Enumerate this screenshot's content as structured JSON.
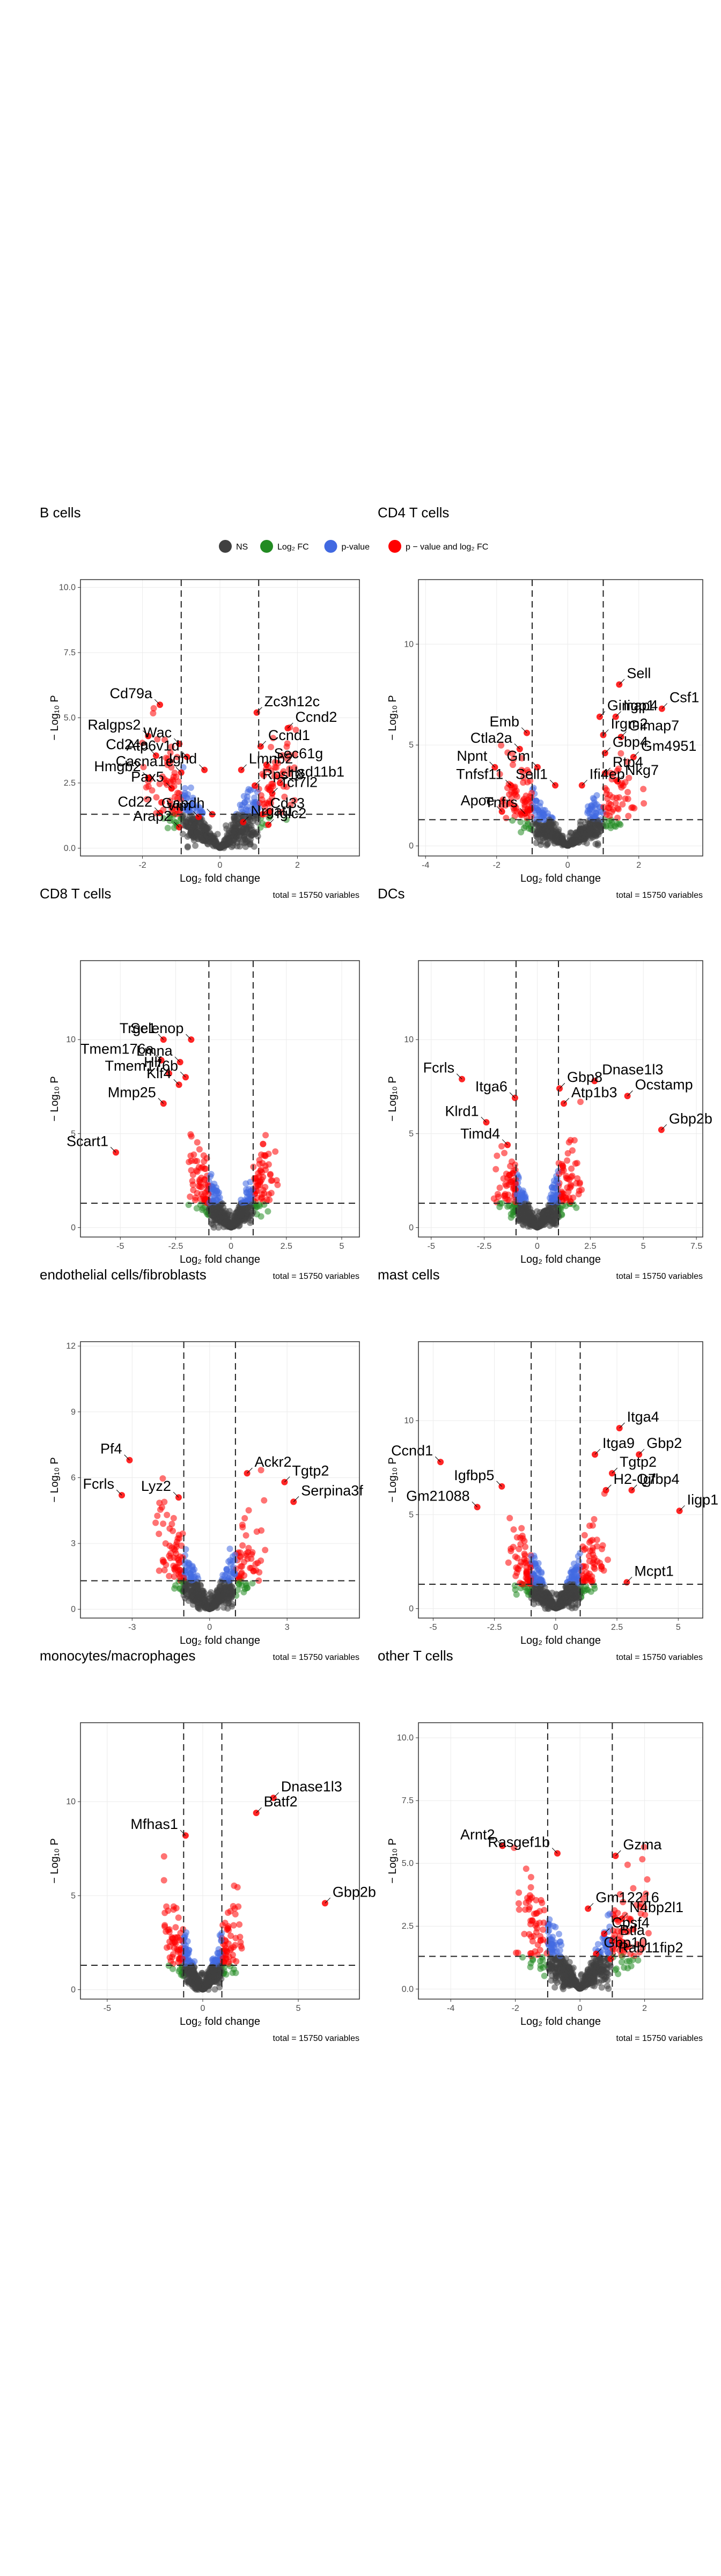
{
  "legend": {
    "items": [
      {
        "label": "NS",
        "color": "#404040"
      },
      {
        "label": "Log₂ FC",
        "color": "#228B22"
      },
      {
        "label": "p-value",
        "color": "#4169E1"
      },
      {
        "label": "p − value and log₂ FC",
        "color": "#FF0000"
      }
    ]
  },
  "shared": {
    "xlabel": "Log₂ fold change",
    "ylabel": "− Log₁₀ P",
    "caption": "total = 15750 variables",
    "colors": {
      "ns": "#404040",
      "fc": "#228B22",
      "p": "#4169E1",
      "both": "#FF0000"
    }
  },
  "chart_data": [
    {
      "type": "scatter",
      "title": "B cells",
      "xlim": [
        -3.6,
        3.6
      ],
      "ylim": [
        -0.3,
        10.3
      ],
      "xticks": [
        -2,
        0,
        2
      ],
      "yticks": [
        0.0,
        2.5,
        5.0,
        7.5,
        10.0
      ],
      "fc_cutoff": 1,
      "p_line": 1.3,
      "labels": [
        {
          "gene": "Cd79a",
          "x": -1.55,
          "y": 5.5
        },
        {
          "gene": "Ralgps2",
          "x": -1.85,
          "y": 4.3
        },
        {
          "gene": "Wac",
          "x": -1.05,
          "y": 4.0
        },
        {
          "gene": "Cd24a",
          "x": -1.65,
          "y": 3.55
        },
        {
          "gene": "Hmgb2",
          "x": -1.85,
          "y": 2.7
        },
        {
          "gene": "Pax5",
          "x": -1.25,
          "y": 2.3
        },
        {
          "gene": "Cd22",
          "x": -1.55,
          "y": 1.35
        },
        {
          "gene": "Arap2",
          "x": -1.05,
          "y": 0.8
        },
        {
          "gene": "Cacna1e",
          "x": -1.0,
          "y": 2.9
        },
        {
          "gene": "Atp6v1d",
          "x": -0.85,
          "y": 3.5
        },
        {
          "gene": "Ighd",
          "x": -0.4,
          "y": 3.0
        },
        {
          "gene": "Vim",
          "x": -0.55,
          "y": 1.2
        },
        {
          "gene": "Gapdh",
          "x": -0.2,
          "y": 1.3
        },
        {
          "gene": "Zc3h12c",
          "x": 0.95,
          "y": 5.2
        },
        {
          "gene": "Ccnd1",
          "x": 1.05,
          "y": 3.9
        },
        {
          "gene": "Ccnd2",
          "x": 1.75,
          "y": 4.6
        },
        {
          "gene": "Sec61g",
          "x": 1.2,
          "y": 3.2
        },
        {
          "gene": "Lmnb2",
          "x": 0.55,
          "y": 3.0
        },
        {
          "gene": "Hsd11b1",
          "x": 1.55,
          "y": 2.5
        },
        {
          "gene": "Rps18",
          "x": 0.9,
          "y": 2.4
        },
        {
          "gene": "Tcf7l2",
          "x": 1.35,
          "y": 2.1
        },
        {
          "gene": "Cd33",
          "x": 1.1,
          "y": 1.3
        },
        {
          "gene": "Nrgat1",
          "x": 0.6,
          "y": 1.0
        },
        {
          "gene": "Iglc2",
          "x": 1.25,
          "y": 0.9
        }
      ]
    },
    {
      "type": "scatter",
      "title": "CD4 T cells",
      "xlim": [
        -4.2,
        3.8
      ],
      "ylim": [
        -0.5,
        13.2
      ],
      "xticks": [
        -4,
        -2,
        0,
        2
      ],
      "yticks": [
        0,
        5,
        10
      ],
      "fc_cutoff": 1,
      "p_line": 1.3,
      "labels": [
        {
          "gene": "Sell",
          "x": 1.45,
          "y": 8.0
        },
        {
          "gene": "Gimap4",
          "x": 0.9,
          "y": 6.4
        },
        {
          "gene": "Iigp1",
          "x": 1.35,
          "y": 6.4
        },
        {
          "gene": "Csf1",
          "x": 2.65,
          "y": 6.8
        },
        {
          "gene": "Emb",
          "x": -1.15,
          "y": 5.6
        },
        {
          "gene": "Irgm2",
          "x": 1.0,
          "y": 5.5
        },
        {
          "gene": "Gimap7",
          "x": 1.5,
          "y": 5.4
        },
        {
          "gene": "Ctla2a",
          "x": -1.35,
          "y": 4.8
        },
        {
          "gene": "Gbp4",
          "x": 1.05,
          "y": 4.6
        },
        {
          "gene": "Gm4951",
          "x": 1.85,
          "y": 4.4
        },
        {
          "gene": "Npnt",
          "x": -2.05,
          "y": 3.9
        },
        {
          "gene": "Gm",
          "x": -0.85,
          "y": 3.9
        },
        {
          "gene": "Rtp4",
          "x": 1.05,
          "y": 3.6
        },
        {
          "gene": "Nkg7",
          "x": 1.4,
          "y": 3.2
        },
        {
          "gene": "Tnfsf11",
          "x": -1.6,
          "y": 3.0
        },
        {
          "gene": "Sell1",
          "x": -0.35,
          "y": 3.0
        },
        {
          "gene": "Ifi4ep",
          "x": 0.4,
          "y": 3.0
        },
        {
          "gene": "Apoe",
          "x": -1.85,
          "y": 1.7
        },
        {
          "gene": "Tnfrs",
          "x": -1.2,
          "y": 1.6
        }
      ]
    },
    {
      "type": "scatter",
      "title": "CD8 T cells",
      "xlim": [
        -6.8,
        5.8
      ],
      "ylim": [
        -0.5,
        14.2
      ],
      "xticks": [
        -5.0,
        -2.5,
        0.0,
        2.5,
        5.0
      ],
      "yticks": [
        0,
        5,
        10
      ],
      "fc_cutoff": 1,
      "p_line": 1.3,
      "labels": [
        {
          "gene": "Trgc1",
          "x": -3.05,
          "y": 10.0
        },
        {
          "gene": "Selenop",
          "x": -1.8,
          "y": 10.0
        },
        {
          "gene": "Tmem176a",
          "x": -3.15,
          "y": 8.9
        },
        {
          "gene": "Lmna",
          "x": -2.3,
          "y": 8.8
        },
        {
          "gene": "Hlf",
          "x": -2.8,
          "y": 8.2
        },
        {
          "gene": "Tmem176b",
          "x": -2.05,
          "y": 8.0
        },
        {
          "gene": "Klf4",
          "x": -2.35,
          "y": 7.6
        },
        {
          "gene": "Mmp25",
          "x": -3.05,
          "y": 6.6
        },
        {
          "gene": "Scart1",
          "x": -5.2,
          "y": 4.0
        }
      ]
    },
    {
      "type": "scatter",
      "title": "DCs",
      "xlim": [
        -5.6,
        7.8
      ],
      "ylim": [
        -0.5,
        14.2
      ],
      "xticks": [
        -5.0,
        -2.5,
        0.0,
        2.5,
        5.0,
        7.5
      ],
      "yticks": [
        0,
        5,
        10
      ],
      "fc_cutoff": 1,
      "p_line": 1.3,
      "labels": [
        {
          "gene": "Dnase1l3",
          "x": 2.7,
          "y": 7.8
        },
        {
          "gene": "Fcrls",
          "x": -3.55,
          "y": 7.9
        },
        {
          "gene": "Gbp8",
          "x": 1.05,
          "y": 7.4
        },
        {
          "gene": "Ocstamp",
          "x": 4.25,
          "y": 7.0
        },
        {
          "gene": "Itga6",
          "x": -1.05,
          "y": 6.9
        },
        {
          "gene": "Atp1b3",
          "x": 1.25,
          "y": 6.6
        },
        {
          "gene": "Klrd1",
          "x": -2.4,
          "y": 5.6
        },
        {
          "gene": "Gbp2b",
          "x": 5.85,
          "y": 5.2
        },
        {
          "gene": "Timd4",
          "x": -1.4,
          "y": 4.4
        }
      ]
    },
    {
      "type": "scatter",
      "title": "endothelial cells/fibroblasts",
      "xlim": [
        -5.0,
        5.8
      ],
      "ylim": [
        -0.4,
        12.2
      ],
      "xticks": [
        -3,
        0,
        3
      ],
      "yticks": [
        0,
        3,
        6,
        9,
        12
      ],
      "fc_cutoff": 1,
      "p_line": 1.3,
      "labels": [
        {
          "gene": "Pf4",
          "x": -3.1,
          "y": 6.8
        },
        {
          "gene": "Ackr2",
          "x": 1.45,
          "y": 6.2
        },
        {
          "gene": "Tgtp2",
          "x": 2.9,
          "y": 5.8
        },
        {
          "gene": "Fcrls",
          "x": -3.4,
          "y": 5.2
        },
        {
          "gene": "Lyz2",
          "x": -1.2,
          "y": 5.1
        },
        {
          "gene": "Serpina3f",
          "x": 3.25,
          "y": 4.9
        }
      ]
    },
    {
      "type": "scatter",
      "title": "mast cells",
      "xlim": [
        -5.6,
        6.0
      ],
      "ylim": [
        -0.5,
        14.2
      ],
      "xticks": [
        -5.0,
        -2.5,
        0.0,
        2.5,
        5.0
      ],
      "yticks": [
        0,
        5,
        10
      ],
      "fc_cutoff": 1,
      "p_line": 1.3,
      "labels": [
        {
          "gene": "Itga4",
          "x": 2.6,
          "y": 9.6
        },
        {
          "gene": "Itga9",
          "x": 1.6,
          "y": 8.2
        },
        {
          "gene": "Gbp2",
          "x": 3.4,
          "y": 8.2
        },
        {
          "gene": "Ccnd1",
          "x": -4.7,
          "y": 7.8
        },
        {
          "gene": "Tgtp2",
          "x": 2.3,
          "y": 7.2
        },
        {
          "gene": "Igfbp5",
          "x": -2.2,
          "y": 6.5
        },
        {
          "gene": "H2-Q7",
          "x": 2.05,
          "y": 6.3
        },
        {
          "gene": "Igfbp4",
          "x": 3.1,
          "y": 6.3
        },
        {
          "gene": "Gm21088",
          "x": -3.2,
          "y": 5.4
        },
        {
          "gene": "Iigp1",
          "x": 5.05,
          "y": 5.2
        },
        {
          "gene": "Mcpt1",
          "x": 2.9,
          "y": 1.4
        }
      ]
    },
    {
      "type": "scatter",
      "title": "monocytes/macrophages",
      "xlim": [
        -6.4,
        8.2
      ],
      "ylim": [
        -0.5,
        14.2
      ],
      "xticks": [
        -5,
        0,
        5
      ],
      "yticks": [
        0,
        5,
        10
      ],
      "fc_cutoff": 1,
      "p_line": 1.3,
      "labels": [
        {
          "gene": "Dnase1l3",
          "x": 3.7,
          "y": 10.2
        },
        {
          "gene": "Batf2",
          "x": 2.8,
          "y": 9.4
        },
        {
          "gene": "Mfhas1",
          "x": -0.9,
          "y": 8.2
        },
        {
          "gene": "Gbp2b",
          "x": 6.4,
          "y": 4.6
        }
      ]
    },
    {
      "type": "scatter",
      "title": "other T cells",
      "xlim": [
        -5.0,
        3.8
      ],
      "ylim": [
        -0.4,
        10.6
      ],
      "xticks": [
        -4,
        -2,
        0,
        2
      ],
      "yticks": [
        0.0,
        2.5,
        5.0,
        7.5,
        10.0
      ],
      "fc_cutoff": 1,
      "p_line": 1.3,
      "labels": [
        {
          "gene": "Arnt2",
          "x": -2.4,
          "y": 5.7
        },
        {
          "gene": "Rasgef1b",
          "x": -0.7,
          "y": 5.4
        },
        {
          "gene": "Gzma",
          "x": 1.1,
          "y": 5.3
        },
        {
          "gene": "Gm12216",
          "x": 0.25,
          "y": 3.2
        },
        {
          "gene": "N4bp2l1",
          "x": 1.3,
          "y": 2.8
        },
        {
          "gene": "Cpsf4",
          "x": 0.75,
          "y": 2.2
        },
        {
          "gene": "Btla",
          "x": 1.0,
          "y": 1.9
        },
        {
          "gene": "Gbp10",
          "x": 0.5,
          "y": 1.4
        },
        {
          "gene": "Rab11fip2",
          "x": 0.95,
          "y": 1.2
        }
      ]
    }
  ]
}
